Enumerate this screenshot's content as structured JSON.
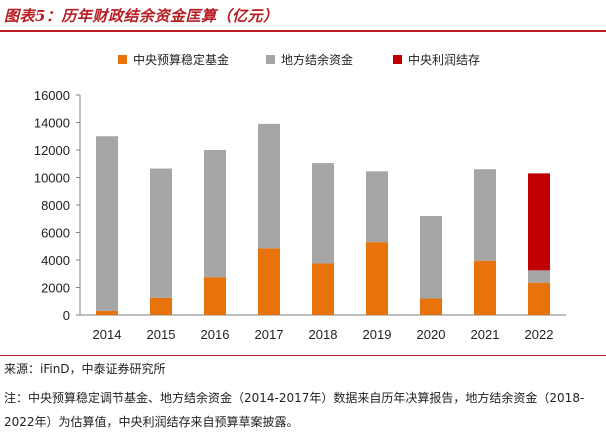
{
  "header": {
    "title": "图表5：历年财政结余资金匡算（亿元）"
  },
  "chart_data": {
    "type": "bar",
    "stacked": true,
    "categories": [
      "2014",
      "2015",
      "2016",
      "2017",
      "2018",
      "2019",
      "2020",
      "2021",
      "2022"
    ],
    "series": [
      {
        "name": "中央预算稳定基金",
        "color": "#e8730c",
        "values": [
          300,
          1250,
          2750,
          4850,
          3750,
          5300,
          1200,
          3950,
          2350
        ]
      },
      {
        "name": "地方结余资金",
        "color": "#a6a6a6",
        "values": [
          12700,
          9400,
          9250,
          9050,
          7300,
          5150,
          6000,
          6650,
          900
        ]
      },
      {
        "name": "中央利润结存",
        "color": "#c00000",
        "values": [
          0,
          0,
          0,
          0,
          0,
          0,
          0,
          0,
          7050
        ]
      }
    ],
    "ylim": [
      0,
      16000
    ],
    "yticks": [
      0,
      2000,
      4000,
      6000,
      8000,
      10000,
      12000,
      14000,
      16000
    ],
    "legend_position": "top",
    "grid": false,
    "title": "",
    "xlabel": "",
    "ylabel": ""
  },
  "footer": {
    "source": "来源：iFinD，中泰证券研究所",
    "note": "注：中央预算稳定调节基金、地方结余资金（2014-2017年）数据来自历年决算报告，地方结余资金（2018-2022年）为估算值，中央利润结存来自预算草案披露。"
  }
}
